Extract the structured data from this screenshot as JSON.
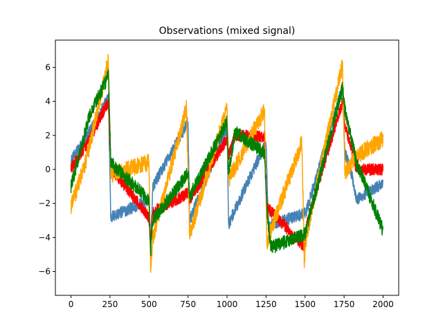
{
  "chart_data": {
    "type": "line",
    "title": "Observations (mixed signal)",
    "xlabel": "",
    "ylabel": "",
    "xlim": [
      -100,
      2100
    ],
    "ylim": [
      -7.4,
      7.6
    ],
    "xticks": [
      0,
      250,
      500,
      750,
      1000,
      1250,
      1500,
      1750,
      2000
    ],
    "yticks": [
      -6,
      -4,
      -2,
      0,
      2,
      4,
      6
    ],
    "grid": false,
    "legend": null,
    "n_points": 2000,
    "series": [
      {
        "color": "#4682b4",
        "noise": 0.35,
        "keypoints": [
          [
            0,
            0.5
          ],
          [
            120,
            2.2
          ],
          [
            240,
            4.2
          ],
          [
            255,
            -2.8
          ],
          [
            500,
            -1.8
          ],
          [
            510,
            -4.6
          ],
          [
            525,
            -1.0
          ],
          [
            750,
            2.8
          ],
          [
            760,
            -3.0
          ],
          [
            1000,
            2.5
          ],
          [
            1010,
            -3.2
          ],
          [
            1250,
            1.6
          ],
          [
            1265,
            -3.3
          ],
          [
            1500,
            -2.6
          ],
          [
            1510,
            -2.4
          ],
          [
            1740,
            4.8
          ],
          [
            1755,
            1.0
          ],
          [
            1800,
            -0.3
          ],
          [
            1830,
            -1.8
          ],
          [
            2000,
            -0.8
          ]
        ]
      },
      {
        "color": "#ff0000",
        "noise": 0.35,
        "keypoints": [
          [
            0,
            0.0
          ],
          [
            120,
            1.8
          ],
          [
            240,
            4.0
          ],
          [
            255,
            0.1
          ],
          [
            500,
            -2.8
          ],
          [
            510,
            -4.3
          ],
          [
            525,
            -2.5
          ],
          [
            750,
            -1.4
          ],
          [
            760,
            -1.8
          ],
          [
            1000,
            1.8
          ],
          [
            1010,
            0.8
          ],
          [
            1050,
            2.0
          ],
          [
            1240,
            1.9
          ],
          [
            1255,
            -2.2
          ],
          [
            1500,
            -4.6
          ],
          [
            1510,
            -3.2
          ],
          [
            1740,
            4.0
          ],
          [
            1755,
            2.6
          ],
          [
            1830,
            0.0
          ],
          [
            2000,
            0.0
          ]
        ]
      },
      {
        "color": "#ffa500",
        "noise": 0.5,
        "keypoints": [
          [
            0,
            -2.2
          ],
          [
            100,
            0.6
          ],
          [
            240,
            6.4
          ],
          [
            255,
            -0.3
          ],
          [
            500,
            0.4
          ],
          [
            510,
            -5.8
          ],
          [
            525,
            -4.0
          ],
          [
            740,
            3.6
          ],
          [
            760,
            -3.8
          ],
          [
            1000,
            3.6
          ],
          [
            1010,
            -0.6
          ],
          [
            1240,
            3.5
          ],
          [
            1255,
            -4.4
          ],
          [
            1280,
            -3.6
          ],
          [
            1480,
            1.6
          ],
          [
            1495,
            -5.4
          ],
          [
            1510,
            -3.8
          ],
          [
            1740,
            6.2
          ],
          [
            1755,
            -0.2
          ],
          [
            1830,
            0.8
          ],
          [
            2000,
            1.8
          ]
        ]
      },
      {
        "color": "#008000",
        "noise": 0.4,
        "keypoints": [
          [
            0,
            -1.0
          ],
          [
            120,
            3.2
          ],
          [
            240,
            5.5
          ],
          [
            255,
            0.4
          ],
          [
            500,
            -1.8
          ],
          [
            510,
            -4.8
          ],
          [
            525,
            -3.0
          ],
          [
            750,
            -0.2
          ],
          [
            760,
            -1.6
          ],
          [
            1000,
            2.8
          ],
          [
            1010,
            -0.2
          ],
          [
            1050,
            2.2
          ],
          [
            1240,
            1.0
          ],
          [
            1255,
            -2.2
          ],
          [
            1280,
            -4.6
          ],
          [
            1500,
            -3.8
          ],
          [
            1510,
            -3.4
          ],
          [
            1740,
            4.8
          ],
          [
            1755,
            3.5
          ],
          [
            1830,
            0.4
          ],
          [
            2000,
            -3.6
          ]
        ]
      }
    ]
  }
}
